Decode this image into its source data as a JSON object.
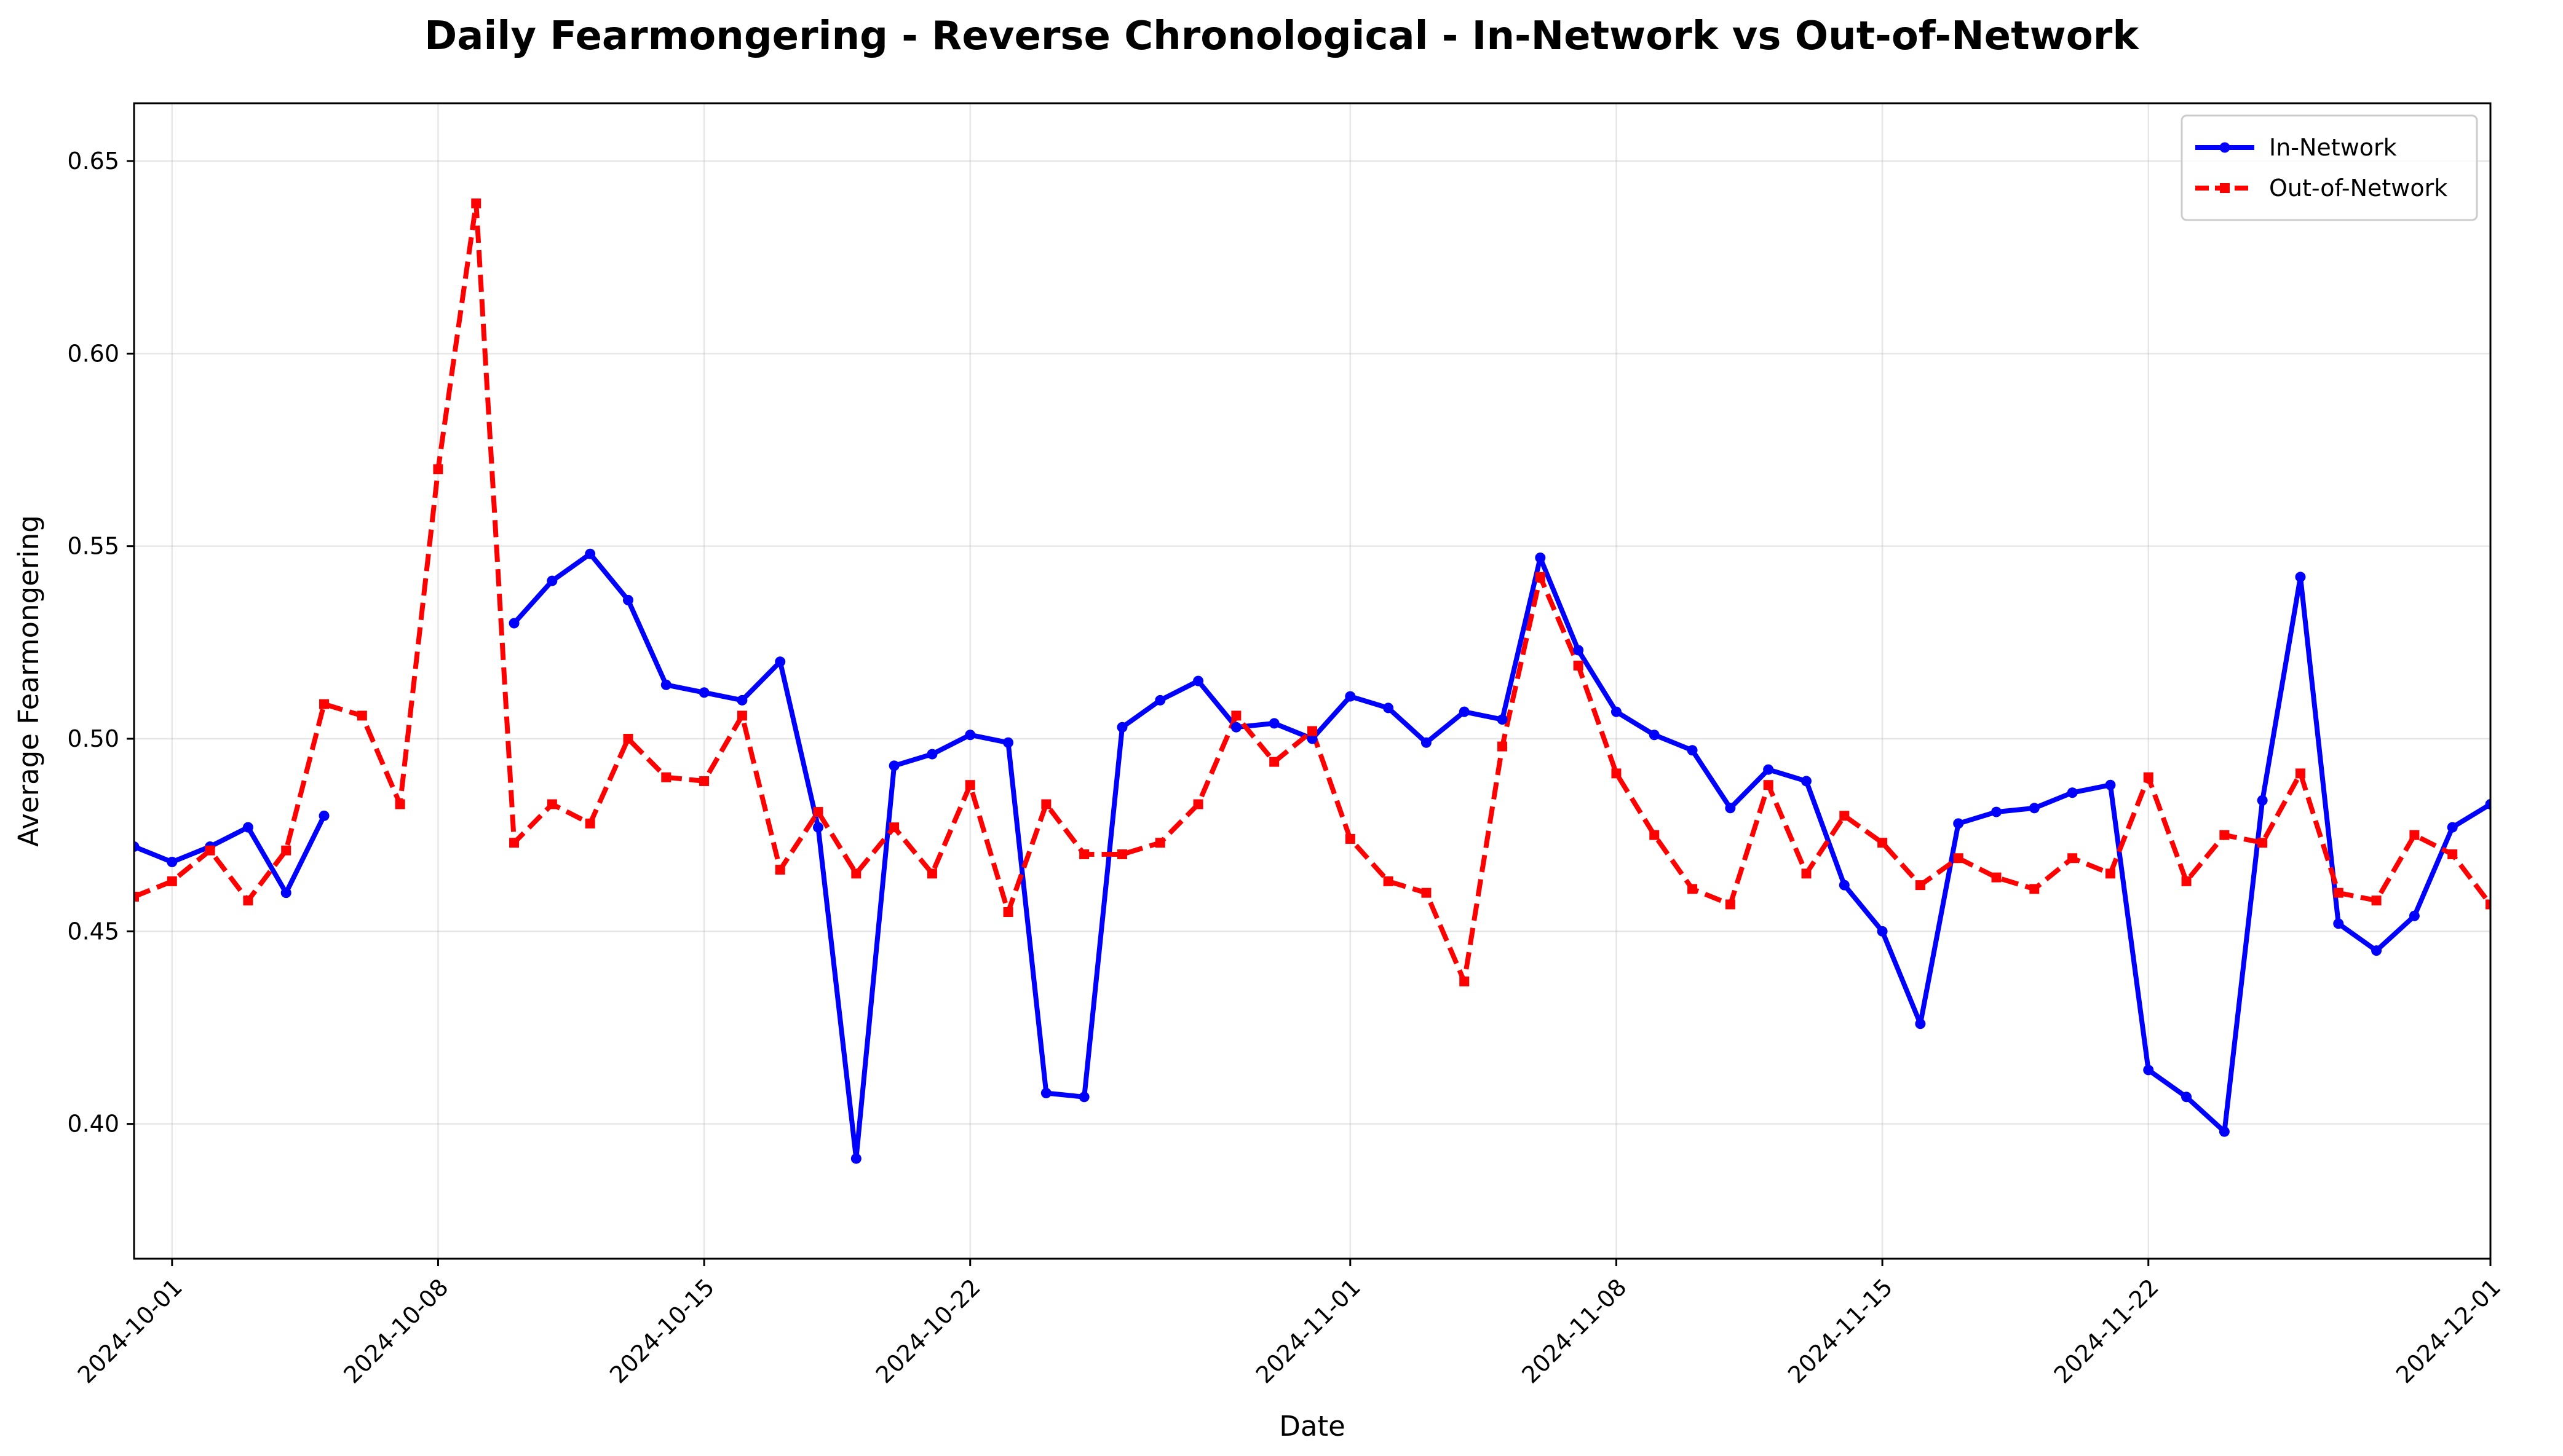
{
  "chart_data": {
    "type": "line",
    "title": "Daily Fearmongering - Reverse Chronological - In-Network vs Out-of-Network",
    "xlabel": "Date",
    "ylabel": "Average Fearmongering",
    "x_tick_labels": [
      "2024-10-01",
      "2024-10-08",
      "2024-10-15",
      "2024-10-22",
      "2024-11-01",
      "2024-11-08",
      "2024-11-15",
      "2024-11-22",
      "2024-12-01"
    ],
    "y_tick_labels": [
      "0.40",
      "0.45",
      "0.50",
      "0.55",
      "0.60",
      "0.65"
    ],
    "xlim": [
      "2024-09-30",
      "2024-12-01"
    ],
    "ylim": [
      0.365,
      0.665
    ],
    "grid": true,
    "legend_position": "upper right",
    "series": [
      {
        "name": "In-Network",
        "color": "#0000ff",
        "style": "solid",
        "marker": "circle",
        "points": [
          [
            "2024-09-30",
            0.472
          ],
          [
            "2024-10-01",
            0.468
          ],
          [
            "2024-10-02",
            0.472
          ],
          [
            "2024-10-03",
            0.477
          ],
          [
            "2024-10-04",
            0.46
          ],
          [
            "2024-10-05",
            0.48
          ],
          [
            "2024-10-10",
            0.53
          ],
          [
            "2024-10-11",
            0.541
          ],
          [
            "2024-10-12",
            0.548
          ],
          [
            "2024-10-13",
            0.536
          ],
          [
            "2024-10-14",
            0.514
          ],
          [
            "2024-10-15",
            0.512
          ],
          [
            "2024-10-16",
            0.51
          ],
          [
            "2024-10-17",
            0.52
          ],
          [
            "2024-10-18",
            0.477
          ],
          [
            "2024-10-19",
            0.391
          ],
          [
            "2024-10-20",
            0.493
          ],
          [
            "2024-10-21",
            0.496
          ],
          [
            "2024-10-22",
            0.501
          ],
          [
            "2024-10-23",
            0.499
          ],
          [
            "2024-10-24",
            0.408
          ],
          [
            "2024-10-25",
            0.407
          ],
          [
            "2024-10-26",
            0.503
          ],
          [
            "2024-10-27",
            0.51
          ],
          [
            "2024-10-28",
            0.515
          ],
          [
            "2024-10-29",
            0.503
          ],
          [
            "2024-10-30",
            0.504
          ],
          [
            "2024-10-31",
            0.5
          ],
          [
            "2024-11-01",
            0.511
          ],
          [
            "2024-11-02",
            0.508
          ],
          [
            "2024-11-03",
            0.499
          ],
          [
            "2024-11-04",
            0.507
          ],
          [
            "2024-11-05",
            0.505
          ],
          [
            "2024-11-06",
            0.547
          ],
          [
            "2024-11-07",
            0.523
          ],
          [
            "2024-11-08",
            0.507
          ],
          [
            "2024-11-09",
            0.501
          ],
          [
            "2024-11-10",
            0.497
          ],
          [
            "2024-11-11",
            0.482
          ],
          [
            "2024-11-12",
            0.492
          ],
          [
            "2024-11-13",
            0.489
          ],
          [
            "2024-11-14",
            0.462
          ],
          [
            "2024-11-15",
            0.45
          ],
          [
            "2024-11-16",
            0.426
          ],
          [
            "2024-11-17",
            0.478
          ],
          [
            "2024-11-18",
            0.481
          ],
          [
            "2024-11-19",
            0.482
          ],
          [
            "2024-11-20",
            0.486
          ],
          [
            "2024-11-21",
            0.488
          ],
          [
            "2024-11-22",
            0.414
          ],
          [
            "2024-11-23",
            0.407
          ],
          [
            "2024-11-24",
            0.398
          ],
          [
            "2024-11-25",
            0.484
          ],
          [
            "2024-11-26",
            0.542
          ],
          [
            "2024-11-27",
            0.452
          ],
          [
            "2024-11-28",
            0.445
          ],
          [
            "2024-11-29",
            0.454
          ],
          [
            "2024-11-30",
            0.477
          ],
          [
            "2024-12-01",
            0.483
          ]
        ]
      },
      {
        "name": "Out-of-Network",
        "color": "#ff0000",
        "style": "dashed",
        "marker": "square",
        "points": [
          [
            "2024-09-30",
            0.459
          ],
          [
            "2024-10-01",
            0.463
          ],
          [
            "2024-10-02",
            0.471
          ],
          [
            "2024-10-03",
            0.458
          ],
          [
            "2024-10-04",
            0.471
          ],
          [
            "2024-10-05",
            0.509
          ],
          [
            "2024-10-06",
            0.506
          ],
          [
            "2024-10-07",
            0.483
          ],
          [
            "2024-10-08",
            0.57
          ],
          [
            "2024-10-09",
            0.639
          ],
          [
            "2024-10-10",
            0.473
          ],
          [
            "2024-10-11",
            0.483
          ],
          [
            "2024-10-12",
            0.478
          ],
          [
            "2024-10-13",
            0.5
          ],
          [
            "2024-10-14",
            0.49
          ],
          [
            "2024-10-15",
            0.489
          ],
          [
            "2024-10-16",
            0.506
          ],
          [
            "2024-10-17",
            0.466
          ],
          [
            "2024-10-18",
            0.481
          ],
          [
            "2024-10-19",
            0.465
          ],
          [
            "2024-10-20",
            0.477
          ],
          [
            "2024-10-21",
            0.465
          ],
          [
            "2024-10-22",
            0.488
          ],
          [
            "2024-10-23",
            0.455
          ],
          [
            "2024-10-24",
            0.483
          ],
          [
            "2024-10-25",
            0.47
          ],
          [
            "2024-10-26",
            0.47
          ],
          [
            "2024-10-27",
            0.473
          ],
          [
            "2024-10-28",
            0.483
          ],
          [
            "2024-10-29",
            0.506
          ],
          [
            "2024-10-30",
            0.494
          ],
          [
            "2024-10-31",
            0.502
          ],
          [
            "2024-11-01",
            0.474
          ],
          [
            "2024-11-02",
            0.463
          ],
          [
            "2024-11-03",
            0.46
          ],
          [
            "2024-11-04",
            0.437
          ],
          [
            "2024-11-05",
            0.498
          ],
          [
            "2024-11-06",
            0.542
          ],
          [
            "2024-11-07",
            0.519
          ],
          [
            "2024-11-08",
            0.491
          ],
          [
            "2024-11-09",
            0.475
          ],
          [
            "2024-11-10",
            0.461
          ],
          [
            "2024-11-11",
            0.457
          ],
          [
            "2024-11-12",
            0.488
          ],
          [
            "2024-11-13",
            0.465
          ],
          [
            "2024-11-14",
            0.48
          ],
          [
            "2024-11-15",
            0.473
          ],
          [
            "2024-11-16",
            0.462
          ],
          [
            "2024-11-17",
            0.469
          ],
          [
            "2024-11-18",
            0.464
          ],
          [
            "2024-11-19",
            0.461
          ],
          [
            "2024-11-20",
            0.469
          ],
          [
            "2024-11-21",
            0.465
          ],
          [
            "2024-11-22",
            0.49
          ],
          [
            "2024-11-23",
            0.463
          ],
          [
            "2024-11-24",
            0.475
          ],
          [
            "2024-11-25",
            0.473
          ],
          [
            "2024-11-26",
            0.491
          ],
          [
            "2024-11-27",
            0.46
          ],
          [
            "2024-11-28",
            0.458
          ],
          [
            "2024-11-29",
            0.475
          ],
          [
            "2024-11-30",
            0.47
          ],
          [
            "2024-12-01",
            0.457
          ]
        ]
      }
    ]
  }
}
